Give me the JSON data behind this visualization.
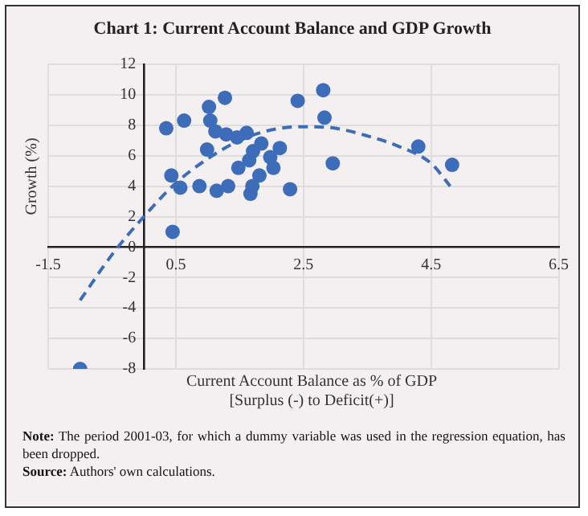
{
  "chart_data": {
    "type": "scatter",
    "title": "Chart 1: Current Account Balance and GDP Growth",
    "xlabel": "Current Account Balance as % of GDP\n[Surplus (-) to Deficit(+)]",
    "ylabel": "Growth (%)",
    "annotations": [
      "Note: The period 2001-03, for which a dummy variable was used in the regression equation, has been dropped.",
      "Source: Authors' own calculations."
    ],
    "xlim": [
      -1.5,
      6.5
    ],
    "xticks": [
      -1.5,
      0.5,
      2.5,
      4.5,
      6.5
    ],
    "ylim": [
      -8,
      12
    ],
    "yticks": [
      -8,
      -6,
      -4,
      -2,
      0,
      2,
      4,
      6,
      8,
      10,
      12
    ],
    "grid": true,
    "marker": "circle",
    "series": [
      {
        "color": "#3d6cb9",
        "x": [
          0.35,
          0.63,
          0.43,
          0.57,
          0.45,
          0.87,
          1.02,
          1.27,
          1.04,
          1.12,
          1.29,
          1.46,
          1.61,
          0.99,
          1.14,
          1.32,
          1.48,
          1.65,
          1.71,
          1.84,
          1.67,
          1.7,
          1.81,
          1.98,
          2.03,
          2.13,
          2.29,
          2.41,
          2.81,
          2.83,
          2.96,
          4.3,
          4.83,
          -1.0
        ],
        "values": [
          7.8,
          8.3,
          4.7,
          3.9,
          1.0,
          4.0,
          9.2,
          9.8,
          8.3,
          7.6,
          7.4,
          7.2,
          7.5,
          6.4,
          3.7,
          4.0,
          5.2,
          5.7,
          6.3,
          6.8,
          3.5,
          4.0,
          4.7,
          5.9,
          5.2,
          6.5,
          3.8,
          9.6,
          10.3,
          8.5,
          5.5,
          6.6,
          5.4,
          -8.0
        ]
      },
      {
        "type": "line",
        "color": "#3d6cb9",
        "line_style": "dashed",
        "marker": "none",
        "x": [
          -1.0,
          -0.5,
          0,
          0.5,
          1.0,
          1.5,
          2.0,
          2.5,
          3.0,
          3.5,
          4.0,
          4.5,
          4.8
        ],
        "values": [
          -3.5,
          -0.5,
          2.0,
          4.2,
          5.8,
          7.0,
          7.7,
          7.9,
          7.8,
          7.3,
          6.6,
          5.5,
          4.0
        ]
      }
    ]
  }
}
